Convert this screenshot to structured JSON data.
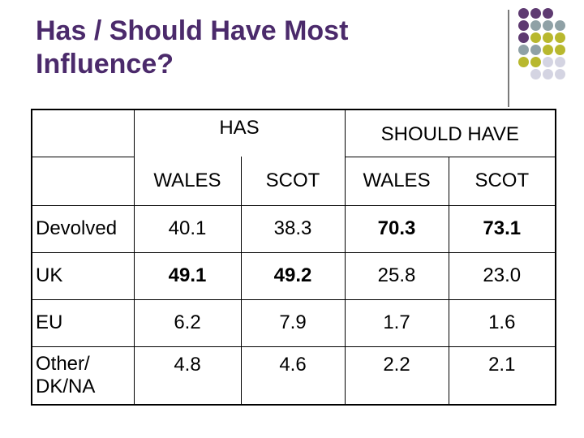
{
  "title": "Has / Should Have Most Influence?",
  "colors": {
    "title": "#4b2a6b",
    "dot_purple": "#5e3a71",
    "dot_gray": "#8fa1a6",
    "dot_olive": "#b8b82e",
    "dot_light": "#d4d4e2"
  },
  "table": {
    "group_headers": [
      "HAS",
      "SHOULD HAVE"
    ],
    "sub_headers": [
      "WALES",
      "SCOT",
      "WALES",
      "SCOT"
    ],
    "rows": [
      {
        "label": "Devolved",
        "values": [
          "40.1",
          "38.3",
          "70.3",
          "73.1"
        ]
      },
      {
        "label": "UK",
        "values": [
          "49.1",
          "49.2",
          "25.8",
          "23.0"
        ]
      },
      {
        "label": "EU",
        "values": [
          "6.2",
          "7.9",
          "1.7",
          "1.6"
        ]
      },
      {
        "label": "Other/ DK/NA",
        "values": [
          "4.8",
          "4.6",
          "2.2",
          "2.1"
        ]
      }
    ]
  }
}
